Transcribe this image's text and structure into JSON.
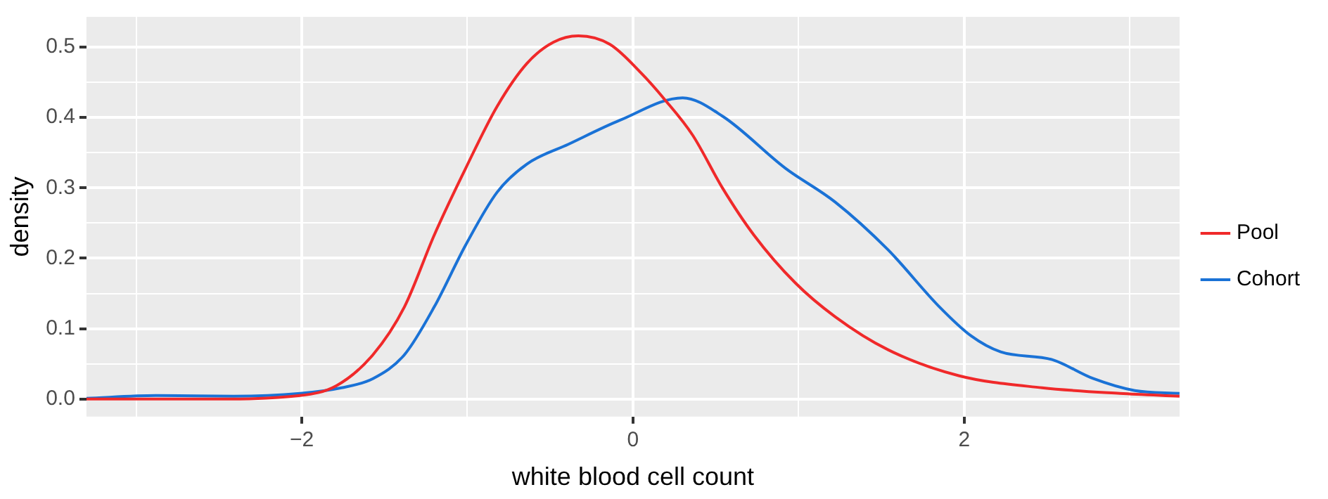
{
  "chart_data": {
    "type": "line",
    "xlabel": "white blood cell count",
    "ylabel": "density",
    "xlim": [
      -3.3,
      3.3
    ],
    "ylim": [
      -0.025,
      0.543
    ],
    "xticks": [
      {
        "value": -3,
        "label": null
      },
      {
        "value": -2,
        "label": "−2"
      },
      {
        "value": -1,
        "label": null
      },
      0,
      {
        "value": 1,
        "label": null
      },
      2,
      {
        "value": 3,
        "label": null
      }
    ],
    "yticks": [
      {
        "value": 0,
        "label": "0.0"
      },
      {
        "value": 0.05,
        "label": null
      },
      0.1,
      {
        "value": 0.15,
        "label": null
      },
      0.2,
      {
        "value": 0.25,
        "label": null
      },
      0.3,
      {
        "value": 0.35,
        "label": null
      },
      0.4,
      {
        "value": 0.45,
        "label": null
      },
      0.5
    ],
    "grid": true,
    "legend": "right",
    "marker": "none",
    "line_style": "solid",
    "series": [
      {
        "name": "Pool",
        "color": "#f0292a",
        "x": [
          -3.3,
          -2.57,
          -2.01,
          -1.79,
          -1.57,
          -1.38,
          -1.2,
          -1.01,
          -0.82,
          -0.64,
          -0.48,
          -0.33,
          -0.14,
          0.05,
          0.19,
          0.36,
          0.54,
          0.73,
          0.98,
          1.22,
          1.54,
          1.97,
          2.47,
          2.94,
          3.3
        ],
        "values": [
          0,
          0,
          0.005,
          0.019,
          0.063,
          0.131,
          0.233,
          0.328,
          0.416,
          0.477,
          0.507,
          0.516,
          0.504,
          0.463,
          0.426,
          0.375,
          0.3,
          0.233,
          0.165,
          0.117,
          0.07,
          0.033,
          0.016,
          0.008,
          0.004
        ]
      },
      {
        "name": "Cohort",
        "color": "#1a72d6",
        "x": [
          -3.3,
          -2.88,
          -2.41,
          -2.01,
          -1.76,
          -1.57,
          -1.38,
          -1.2,
          -1.01,
          -0.82,
          -0.64,
          -0.39,
          -0.08,
          0.3,
          0.54,
          0.92,
          1.22,
          1.54,
          1.85,
          2.04,
          2.22,
          2.53,
          2.78,
          3.03,
          3.3
        ],
        "values": [
          0.001,
          0.005,
          0.004,
          0.008,
          0.016,
          0.029,
          0.063,
          0.131,
          0.219,
          0.294,
          0.334,
          0.362,
          0.396,
          0.428,
          0.402,
          0.328,
          0.28,
          0.212,
          0.131,
          0.09,
          0.067,
          0.056,
          0.029,
          0.012,
          0.008
        ]
      }
    ]
  }
}
